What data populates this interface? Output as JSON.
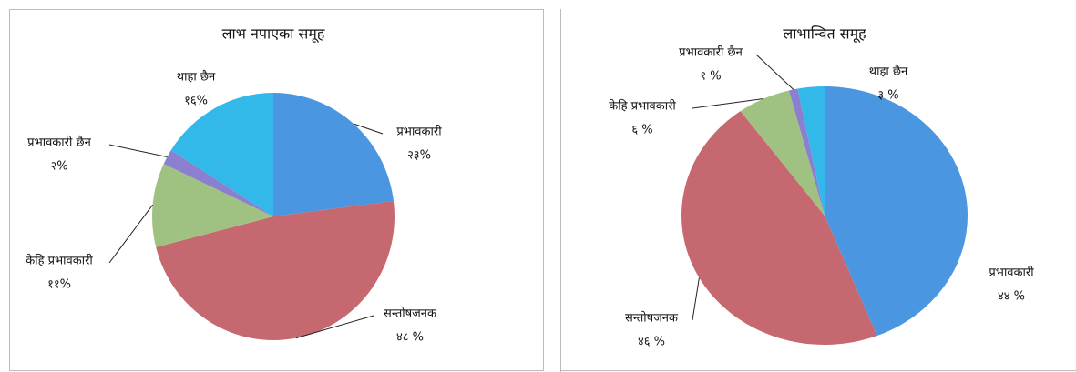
{
  "chart_data": [
    {
      "type": "pie",
      "title": "लाभ नपाएका समूह",
      "categories": [
        "प्रभावकारी",
        "सन्तोषजनक",
        "केहि प्रभावकारी",
        "प्रभावकारी छैन",
        "थाहा छैन"
      ],
      "values": [
        23,
        48,
        11,
        2,
        16
      ],
      "value_labels": [
        "२३%",
        "४८ %",
        "११%",
        "२%",
        "१६%"
      ],
      "colors": [
        "#4a96e0",
        "#c66870",
        "#9fc283",
        "#8b7fcf",
        "#33b8ea"
      ]
    },
    {
      "type": "pie",
      "title": "लाभान्वित समूह",
      "categories": [
        "प्रभावकारी",
        "सन्तोषजनक",
        "केहि प्रभावकारी",
        "प्रभावकारी छैन",
        "थाहा छैन"
      ],
      "values": [
        44,
        46,
        6,
        1,
        3
      ],
      "value_labels": [
        "४४ %",
        "४६ %",
        "६ %",
        "१ %",
        "३ %"
      ],
      "colors": [
        "#4a96e0",
        "#c66870",
        "#9fc283",
        "#8b7fcf",
        "#33b8ea"
      ]
    }
  ]
}
